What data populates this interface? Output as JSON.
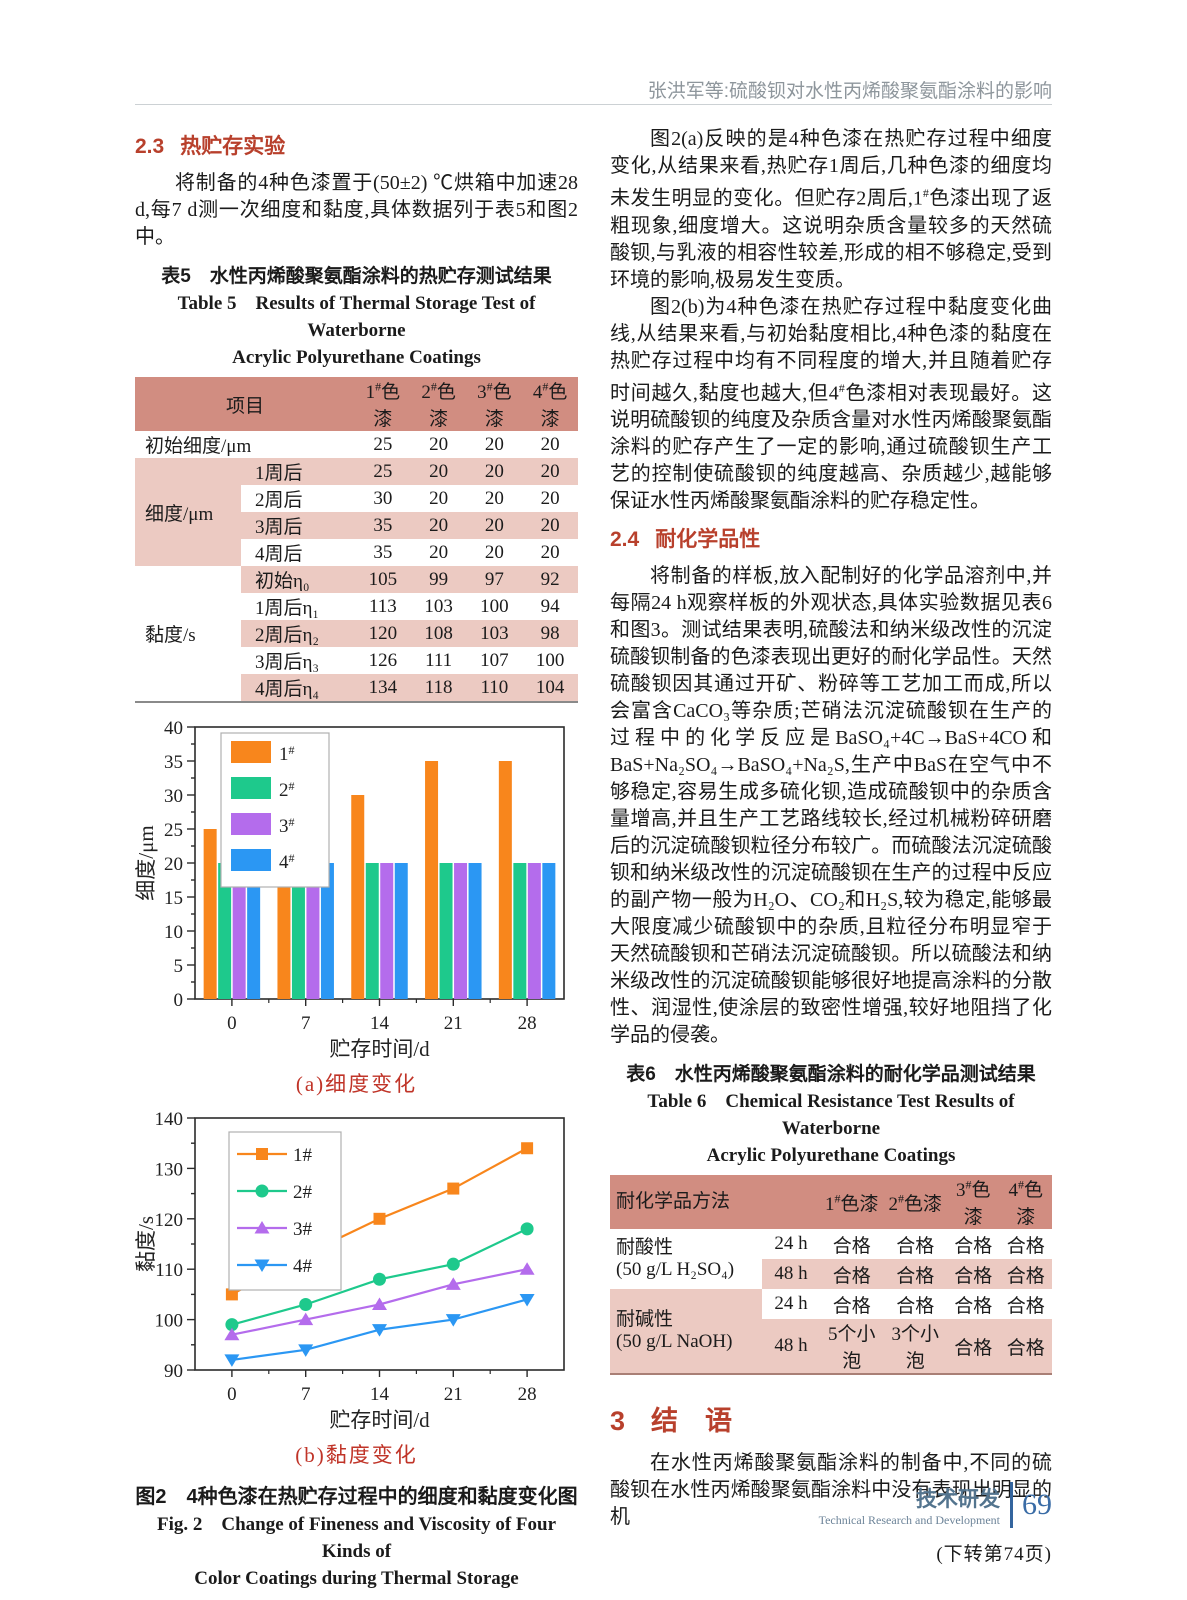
{
  "page": {
    "running_head": "张洪军等:硫酸钡对水性丙烯酸聚氨酯涂料的影响",
    "continuation": "(下转第74页)",
    "footer": {
      "cn": "技术研发",
      "en": "Technical Research and Development",
      "page_no": "69"
    },
    "accent_red": "#b8402c",
    "table_header_color": "#d18d81",
    "table_stripe_color": "#eccac2"
  },
  "left": {
    "sec23": {
      "num": "2.3",
      "title": "热贮存实验"
    },
    "para1": "将制备的4种色漆置于(50±2) ℃烘箱中加速28 d,每7 d测一次细度和黏度,具体数据列于表5和图2中。",
    "table5": {
      "title_cn": "表5　水性丙烯酸聚氨酯涂料的热贮存测试结果",
      "title_en1": "Table 5　Results of Thermal Storage Test of Waterborne",
      "title_en2": "Acrylic Polyurethane Coatings",
      "header": [
        "项目",
        "1#色漆",
        "2#色漆",
        "3#色漆",
        "4#色漆"
      ],
      "initial": {
        "label": "初始细度/μm",
        "values": [
          "25",
          "20",
          "20",
          "20"
        ]
      },
      "fineness": {
        "label": "细度/μm",
        "rows": [
          {
            "label": "1周后",
            "values": [
              "25",
              "20",
              "20",
              "20"
            ]
          },
          {
            "label": "2周后",
            "values": [
              "30",
              "20",
              "20",
              "20"
            ]
          },
          {
            "label": "3周后",
            "values": [
              "35",
              "20",
              "20",
              "20"
            ]
          },
          {
            "label": "4周后",
            "values": [
              "35",
              "20",
              "20",
              "20"
            ]
          }
        ]
      },
      "viscosity": {
        "label": "黏度/s",
        "rows": [
          {
            "label": "初始η₀",
            "values": [
              "105",
              "99",
              "97",
              "92"
            ]
          },
          {
            "label": "1周后η₁",
            "values": [
              "113",
              "103",
              "100",
              "94"
            ]
          },
          {
            "label": "2周后η₂",
            "values": [
              "120",
              "108",
              "103",
              "98"
            ]
          },
          {
            "label": "3周后η₃",
            "values": [
              "126",
              "111",
              "107",
              "100"
            ]
          },
          {
            "label": "4周后η₄",
            "values": [
              "134",
              "118",
              "110",
              "104"
            ]
          }
        ]
      }
    },
    "fig2": {
      "caption_cn": "图2　4种色漆在热贮存过程中的细度和黏度变化图",
      "caption_en1": "Fig. 2　Change of Fineness and Viscosity of Four Kinds of",
      "caption_en2": "Color Coatings during Thermal Storage"
    }
  },
  "right": {
    "para1": "图2(a)反映的是4种色漆在热贮存过程中细度变化,从结果来看,热贮存1周后,几种色漆的细度均未发生明显的变化。但贮存2周后,1#色漆出现了返粗现象,细度增大。这说明杂质含量较多的天然硫酸钡,与乳液的相容性较差,形成的相不够稳定,受到环境的影响,极易发生变质。",
    "para2": "图2(b)为4种色漆在热贮存过程中黏度变化曲线,从结果来看,与初始黏度相比,4种色漆的黏度在热贮存过程中均有不同程度的增大,并且随着贮存时间越久,黏度也越大,但4#色漆相对表现最好。这说明硫酸钡的纯度及杂质含量对水性丙烯酸聚氨酯涂料的贮存产生了一定的影响,通过硫酸钡生产工艺的控制使硫酸钡的纯度越高、杂质越少,越能够保证水性丙烯酸聚氨酯涂料的贮存稳定性。",
    "sec24": {
      "num": "2.4",
      "title": "耐化学品性"
    },
    "para3": "将制备的样板,放入配制好的化学品溶剂中,并每隔24 h观察样板的外观状态,具体实验数据见表6和图3。测试结果表明,硫酸法和纳米级改性的沉淀硫酸钡制备的色漆表现出更好的耐化学品性。天然硫酸钡因其通过开矿、粉碎等工艺加工而成,所以会富含CaCO₃等杂质;芒硝法沉淀硫酸钡在生产的过程中的化学反应是BaSO₄+4C→BaS+4CO和BaS+Na₂SO₄→BaSO₄+Na₂S,生产中BaS在空气中不够稳定,容易生成多硫化钡,造成硫酸钡中的杂质含量增高,并且生产工艺路线较长,经过机械粉碎研磨后的沉淀硫酸钡粒径分布较广。而硫酸法沉淀硫酸钡和纳米级改性的沉淀硫酸钡在生产的过程中反应的副产物一般为H₂O、CO₂和H₂S,较为稳定,能够最大限度减少硫酸钡中的杂质,且粒径分布明显窄于天然硫酸钡和芒硝法沉淀硫酸钡。所以硫酸法和纳米级改性的沉淀硫酸钡能够很好地提高涂料的分散性、润湿性,使涂层的致密性增强,较好地阻挡了化学品的侵袭。",
    "table6": {
      "title_cn": "表6　水性丙烯酸聚氨酯涂料的耐化学品测试结果",
      "title_en1": "Table 6　Chemical Resistance Test Results of Waterborne",
      "title_en2": "Acrylic Polyurethane Coatings",
      "header": [
        "耐化学品方法",
        "1#色漆",
        "2#色漆",
        "3#色漆",
        "4#色漆"
      ],
      "acid": {
        "label1": "耐酸性",
        "label2": "(50 g/L H₂SO₄)",
        "rows": [
          {
            "time": "24 h",
            "values": [
              "合格",
              "合格",
              "合格",
              "合格"
            ]
          },
          {
            "time": "48 h",
            "values": [
              "合格",
              "合格",
              "合格",
              "合格"
            ]
          }
        ]
      },
      "alkali": {
        "label1": "耐碱性",
        "label2": "(50 g/L NaOH)",
        "rows": [
          {
            "time": "24 h",
            "values": [
              "合格",
              "合格",
              "合格",
              "合格"
            ]
          },
          {
            "time": "48 h",
            "values": [
              "5个小泡",
              "3个小泡",
              "合格",
              "合格"
            ]
          }
        ]
      }
    },
    "sec3": {
      "num": "3",
      "title": "结　语"
    },
    "para4": "在水性丙烯酸聚氨酯涂料的制备中,不同的硫酸钡在水性丙烯酸聚氨酯涂料中没有表现出明显的机"
  },
  "chart_data": [
    {
      "type": "bar",
      "title": "(a)细度变化",
      "categories": [
        "0",
        "7",
        "14",
        "21",
        "28"
      ],
      "series": [
        {
          "name": "1#",
          "color": "#f8861c",
          "values": [
            25,
            25,
            30,
            35,
            35
          ]
        },
        {
          "name": "2#",
          "color": "#1ec98c",
          "values": [
            20,
            20,
            20,
            20,
            20
          ]
        },
        {
          "name": "3#",
          "color": "#b46cec",
          "values": [
            20,
            20,
            20,
            20,
            20
          ]
        },
        {
          "name": "4#",
          "color": "#2b97f3",
          "values": [
            20,
            20,
            20,
            20,
            20
          ]
        }
      ],
      "xlabel": "贮存时间/d",
      "ylabel": "细度/μm",
      "ylim": [
        0,
        40
      ],
      "ytick": 5,
      "legend_position": "top-left",
      "grid": false
    },
    {
      "type": "line",
      "title": "(b)黏度变化",
      "x": [
        0,
        7,
        14,
        21,
        28
      ],
      "categories": [
        "0",
        "7",
        "14",
        "21",
        "28"
      ],
      "series": [
        {
          "name": "1#",
          "color": "#f8861c",
          "marker": "square",
          "values": [
            105,
            113,
            120,
            126,
            134
          ]
        },
        {
          "name": "2#",
          "color": "#1ec98c",
          "marker": "circle",
          "values": [
            99,
            103,
            108,
            111,
            118
          ]
        },
        {
          "name": "3#",
          "color": "#b46cec",
          "marker": "triangle-up",
          "values": [
            97,
            100,
            103,
            107,
            110
          ]
        },
        {
          "name": "4#",
          "color": "#2b97f3",
          "marker": "triangle-down",
          "values": [
            92,
            94,
            98,
            100,
            104
          ]
        }
      ],
      "xlabel": "贮存时间/d",
      "ylabel": "黏度/s",
      "ylim": [
        90,
        140
      ],
      "ytick": 10,
      "legend_position": "top-left",
      "grid": false
    }
  ]
}
